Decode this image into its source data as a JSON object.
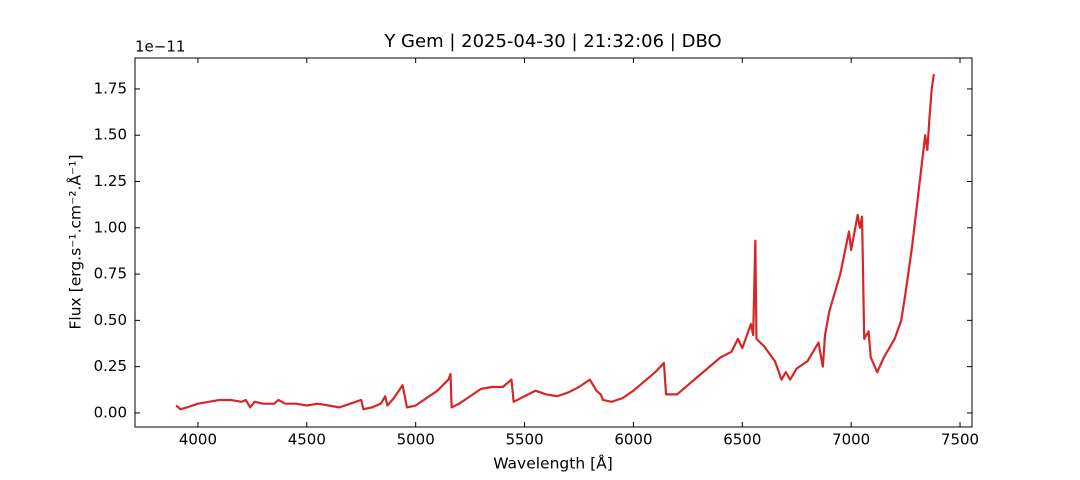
{
  "chart_data": {
    "type": "line",
    "title": "Y Gem | 2025-04-30 | 21:32:06 | DBO",
    "xlabel": "Wavelength [Å]",
    "ylabel": "Flux [erg.s⁻¹.cm⁻².Å⁻¹]",
    "y_offset_label": "1e−11",
    "color": "#d62728",
    "x": [
      3900,
      3920,
      3950,
      4000,
      4050,
      4100,
      4150,
      4200,
      4220,
      4240,
      4260,
      4300,
      4350,
      4370,
      4400,
      4450,
      4500,
      4550,
      4600,
      4650,
      4700,
      4750,
      4760,
      4800,
      4840,
      4860,
      4870,
      4900,
      4940,
      4960,
      5000,
      5100,
      5150,
      5160,
      5165,
      5200,
      5250,
      5300,
      5350,
      5400,
      5440,
      5450,
      5500,
      5550,
      5600,
      5650,
      5700,
      5750,
      5800,
      5830,
      5850,
      5860,
      5900,
      5950,
      6000,
      6050,
      6100,
      6140,
      6150,
      6200,
      6250,
      6300,
      6350,
      6400,
      6450,
      6480,
      6500,
      6540,
      6550,
      6560,
      6565,
      6600,
      6650,
      6680,
      6700,
      6720,
      6750,
      6800,
      6850,
      6870,
      6880,
      6900,
      6950,
      6990,
      7000,
      7030,
      7040,
      7050,
      7060,
      7080,
      7090,
      7120,
      7150,
      7200,
      7230,
      7250,
      7280,
      7300,
      7320,
      7340,
      7350,
      7360,
      7370,
      7380
    ],
    "values": [
      0.04,
      0.02,
      0.03,
      0.05,
      0.06,
      0.07,
      0.07,
      0.06,
      0.07,
      0.03,
      0.06,
      0.05,
      0.05,
      0.07,
      0.05,
      0.05,
      0.04,
      0.05,
      0.04,
      0.03,
      0.05,
      0.07,
      0.02,
      0.03,
      0.05,
      0.09,
      0.04,
      0.08,
      0.15,
      0.03,
      0.04,
      0.12,
      0.18,
      0.21,
      0.03,
      0.05,
      0.09,
      0.13,
      0.14,
      0.14,
      0.18,
      0.06,
      0.09,
      0.12,
      0.1,
      0.09,
      0.11,
      0.14,
      0.18,
      0.12,
      0.1,
      0.07,
      0.06,
      0.08,
      0.12,
      0.17,
      0.22,
      0.27,
      0.1,
      0.1,
      0.15,
      0.2,
      0.25,
      0.3,
      0.33,
      0.4,
      0.35,
      0.48,
      0.42,
      0.93,
      0.4,
      0.36,
      0.28,
      0.18,
      0.22,
      0.18,
      0.24,
      0.28,
      0.38,
      0.25,
      0.42,
      0.55,
      0.75,
      0.98,
      0.88,
      1.07,
      1.0,
      1.06,
      0.4,
      0.44,
      0.3,
      0.22,
      0.3,
      0.4,
      0.5,
      0.65,
      0.9,
      1.1,
      1.3,
      1.5,
      1.42,
      1.6,
      1.75,
      1.83
    ],
    "xlim": [
      3711,
      7555
    ],
    "ylim": [
      -0.076,
      1.917
    ],
    "xticks": [
      4000,
      4500,
      5000,
      5500,
      6000,
      6500,
      7000,
      7500
    ],
    "yticks": [
      {
        "value": 0,
        "label": "0.00"
      },
      0.25,
      {
        "value": 0.5,
        "label": "0.50"
      },
      0.75,
      {
        "value": 1,
        "label": "1.00"
      },
      1.25,
      {
        "value": 1.5,
        "label": "1.50"
      },
      1.75
    ],
    "grid": false
  }
}
